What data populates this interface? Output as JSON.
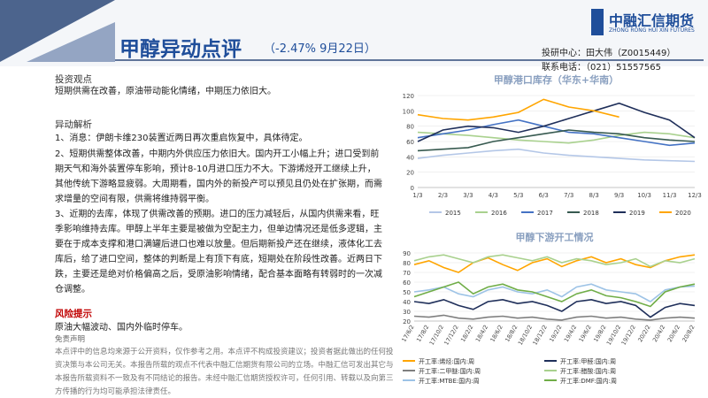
{
  "header": {
    "title": "甲醇异动点评",
    "subtitle": "（-2.47% 9月22日）",
    "logo_cn": "中融汇信期货",
    "logo_en": "ZHONG RONG HUI XIN FUTURES",
    "author": "投研中心：田大伟（Z0015449）",
    "phone": "联系电话：（021）51557565"
  },
  "sections": {
    "view_heading": "投资观点",
    "view_text": "短期供需在改善，原油带动能化情绪，中期压力依旧大。",
    "analysis_heading": "异动解析",
    "analysis": [
      "1、消息：伊朗卡维230装置近两日再次重启恢复中，具体待定。",
      "2、短期供需整体改善，中期内外供应压力依旧大。国内开工小幅上升；进口受到前期天气和海外装置停车影响，预计8-10月进口压力不大。下游烯烃开工继续上升，其他传统下游略显疲弱。大周期看，国内外的新投产可以预见且仍处在扩张期，而需求增量的空间有限，供需将维持弱平衡。",
      "3、近期的去库，体现了供需改善的预期。进口的压力减轻后，从国内供需来看，旺季影响维持去库。甲醇上半年主要是被做为空配主力，但单边情况还是低多逻辑，主要在于成本支撑和港口满罐后进口也难以放量。但后期新投产还在继续，液体化工去库后，给了进口空间，整体的判断是上有顶下有底，短期处在阶段性改善。近两日下跌，主要还是绝对价格偏高之后，受原油影响情绪，配合基本面略有转弱时的一次减仓调整。"
    ],
    "risk_heading": "风险提示",
    "risk_text": "原油大幅波动、国内外临时停车。",
    "disclaimer_heading": "免责声明",
    "disclaimer_text": "本点评中的信息均来源于公开资料，仅作参考之用。本点评不构成投资建议；投资者据此做出的任何投资决策与本公司无关。本报告所载的观点不代表中融汇信期货有限公司的立场。中融汇信可发出其它与本报告所载资料不一致及有不同结论的报告。未经中融汇信期货授权许可，任何引用、转载以及向第三方传播的行为均可能承担法律责任。"
  },
  "charts": [
    {
      "type": "line",
      "title": "甲醇港口库存（华东+华南）",
      "categories": [
        "1/3",
        "2/3",
        "3/3",
        "4/3",
        "5/3",
        "6/3",
        "7/3",
        "8/3",
        "9/3",
        "10/3",
        "11/3",
        "12/3"
      ],
      "ylim": [
        0,
        120
      ],
      "yticks": [
        0,
        20,
        40,
        60,
        80,
        100,
        120
      ],
      "legend": "bottom",
      "series": [
        {
          "name": "2015",
          "color": "#b4c7e7",
          "values": [
            38,
            42,
            45,
            48,
            50,
            45,
            42,
            40,
            38,
            36,
            35,
            34
          ]
        },
        {
          "name": "2016",
          "color": "#a9d18e",
          "values": [
            72,
            70,
            68,
            65,
            62,
            60,
            58,
            62,
            68,
            72,
            70,
            65
          ]
        },
        {
          "name": "2017",
          "color": "#4472c4",
          "values": [
            65,
            70,
            75,
            82,
            88,
            80,
            72,
            70,
            65,
            60,
            55,
            58
          ]
        },
        {
          "name": "2018",
          "color": "#375a50",
          "values": [
            48,
            50,
            52,
            60,
            65,
            70,
            75,
            72,
            70,
            65,
            62,
            60
          ]
        },
        {
          "name": "2019",
          "color": "#1f2f5a",
          "values": [
            60,
            75,
            80,
            78,
            72,
            80,
            90,
            100,
            110,
            98,
            88,
            65
          ]
        },
        {
          "name": "2020",
          "color": "#ffa500",
          "values": [
            95,
            90,
            88,
            92,
            98,
            115,
            105,
            100,
            92,
            null,
            null,
            null
          ]
        }
      ]
    },
    {
      "type": "line",
      "title": "甲醇下游开工情况",
      "categories": [
        "17/6/2",
        "17/8/2",
        "17/10/2",
        "17/12/2",
        "18/2/2",
        "18/4/2",
        "18/6/2",
        "18/8/2",
        "18/10/2",
        "18/12/2",
        "19/2/2",
        "19/4/2",
        "19/6/2",
        "19/8/2",
        "19/10/2",
        "19/12/2",
        "20/2/2",
        "20/4/2",
        "20/6/2",
        "20/8/2"
      ],
      "ylim": [
        20,
        90
      ],
      "yticks": [
        20,
        30,
        40,
        50,
        60,
        70,
        80,
        90
      ],
      "legend": "bottom",
      "series": [
        {
          "name": "开工率:烯烃:国内:周",
          "color": "#ffa500",
          "values": [
            78,
            82,
            75,
            70,
            80,
            85,
            78,
            72,
            80,
            84,
            76,
            82,
            86,
            80,
            84,
            78,
            75,
            82,
            86,
            88
          ]
        },
        {
          "name": "开工率:甲醛:国内:周",
          "color": "#1f2f5a",
          "values": [
            40,
            38,
            42,
            36,
            32,
            40,
            42,
            38,
            40,
            36,
            30,
            40,
            42,
            38,
            40,
            36,
            24,
            34,
            38,
            36
          ]
        },
        {
          "name": "开工率:二甲醚:国内:周",
          "color": "#7f7f7f",
          "values": [
            25,
            24,
            26,
            23,
            22,
            24,
            25,
            23,
            24,
            22,
            21,
            24,
            25,
            23,
            24,
            22,
            21,
            23,
            24,
            23
          ]
        },
        {
          "name": "开工率:醋酸:国内:周",
          "color": "#a9d18e",
          "values": [
            82,
            86,
            88,
            84,
            80,
            86,
            88,
            85,
            82,
            86,
            80,
            84,
            82,
            78,
            80,
            84,
            76,
            82,
            80,
            84
          ]
        },
        {
          "name": "开工率:MTBE:国内:周",
          "color": "#9dc3e6",
          "values": [
            50,
            52,
            55,
            48,
            45,
            52,
            55,
            50,
            48,
            52,
            45,
            55,
            58,
            52,
            50,
            48,
            40,
            52,
            55,
            56
          ]
        },
        {
          "name": "开工率:DMF:国内:周",
          "color": "#70ad47",
          "values": [
            45,
            50,
            55,
            60,
            48,
            55,
            58,
            52,
            50,
            45,
            40,
            48,
            52,
            46,
            44,
            40,
            35,
            50,
            55,
            58
          ]
        }
      ]
    }
  ]
}
